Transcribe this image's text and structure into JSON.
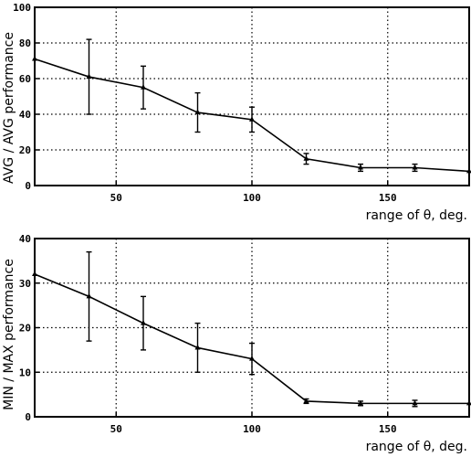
{
  "chart_data": [
    {
      "type": "line",
      "ylabel": "AVG / AVG performance",
      "xlabel": "range of θ, deg.",
      "xlim": [
        20,
        180
      ],
      "ylim": [
        0,
        100
      ],
      "xticks": [
        50,
        100,
        150
      ],
      "yticks": [
        0,
        20,
        40,
        60,
        80,
        100
      ],
      "grid": true,
      "series": [
        {
          "x": [
            20,
            40,
            60,
            80,
            100,
            120,
            140,
            160,
            180
          ],
          "y": [
            71,
            61,
            55,
            41,
            37,
            15,
            10,
            10,
            8
          ],
          "err": [
            0,
            21,
            12,
            11,
            7,
            3,
            2,
            2,
            0
          ]
        }
      ]
    },
    {
      "type": "line",
      "ylabel": "MIN / MAX performance",
      "xlabel": "range of θ, deg.",
      "xlim": [
        20,
        180
      ],
      "ylim": [
        0,
        40
      ],
      "xticks": [
        50,
        100,
        150
      ],
      "yticks": [
        0,
        10,
        20,
        30,
        40
      ],
      "grid": true,
      "series": [
        {
          "x": [
            20,
            40,
            60,
            80,
            100,
            120,
            140,
            160,
            180
          ],
          "y": [
            32,
            27,
            21,
            15.5,
            13,
            3.5,
            3,
            3,
            3
          ],
          "err": [
            0,
            10,
            6,
            5.5,
            3.5,
            0.5,
            0.5,
            0.7,
            0
          ]
        }
      ]
    }
  ]
}
